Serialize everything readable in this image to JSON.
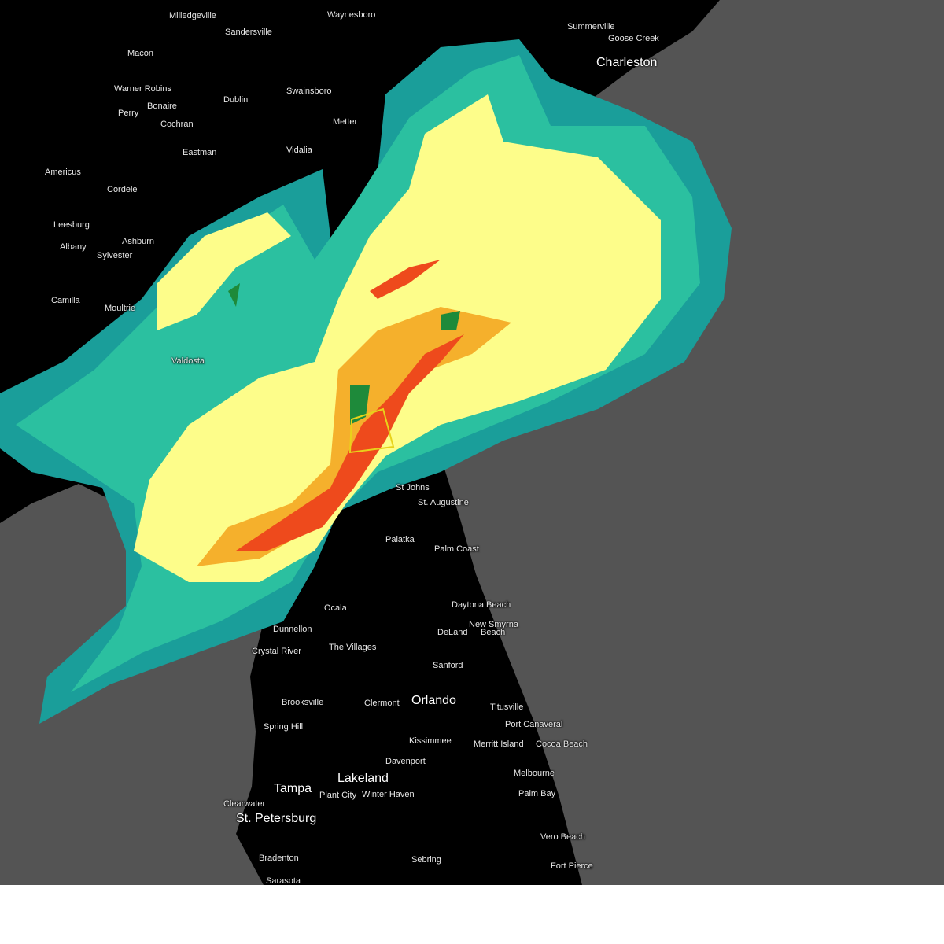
{
  "map": {
    "type": "weather-radar",
    "colors": {
      "land": "#000000",
      "water": "#545454",
      "radar_light": "#1a9e9a",
      "radar_teal": "#2bc0a0",
      "radar_green": "#1e8a3a",
      "radar_yellow": "#fdfd8a",
      "radar_orange": "#f5b02c",
      "radar_red": "#ee4a1c",
      "warning_outline": "#e8d21a"
    },
    "cities": [
      "Milledgeville",
      "Waynesboro",
      "Summerville",
      "Goose Creek",
      "Charleston",
      "Sandersville",
      "Macon",
      "Warner Robins",
      "Bonaire",
      "Perry",
      "Dublin",
      "Swainsboro",
      "Metter",
      "Cochran",
      "Eastman",
      "Vidalia",
      "Americus",
      "Cordele",
      "Leesburg",
      "Albany",
      "Ashburn",
      "Sylvester",
      "Camilla",
      "Moultrie",
      "Valdosta",
      "St Johns",
      "St. Augustine",
      "Palatka",
      "Palm Coast",
      "Ocala",
      "Daytona Beach",
      "New Smyrna",
      "Beach",
      "DeLand",
      "Dunnellon",
      "Crystal River",
      "The Villages",
      "Sanford",
      "Brooksville",
      "Clermont",
      "Orlando",
      "Titusville",
      "Spring Hill",
      "Port Canaveral",
      "Kissimmee",
      "Merritt Island",
      "Cocoa Beach",
      "Davenport",
      "Melbourne",
      "Tampa",
      "Lakeland",
      "Clearwater",
      "Plant City",
      "Winter Haven",
      "Palm Bay",
      "St. Petersburg",
      "Vero Beach",
      "Bradenton",
      "Sebring",
      "Fort Pierce",
      "Sarasota"
    ]
  }
}
